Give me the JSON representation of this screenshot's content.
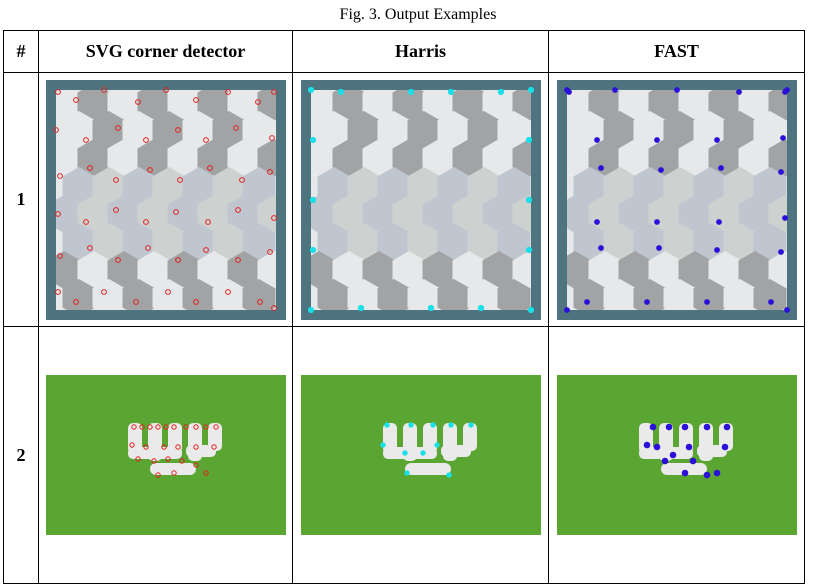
{
  "caption": "Fig. 3. Output Examples",
  "headers": {
    "index": "#",
    "col1": "SVG corner detector",
    "col2": "Harris",
    "col3": "FAST"
  },
  "rows": [
    {
      "label": "1",
      "image": "tiled-hexagon-pattern"
    },
    {
      "label": "2",
      "image": "green-flag-with-white-script"
    }
  ],
  "marker_colors": {
    "svg_corner_detector": "#e02020",
    "harris": "#18e0e8",
    "fast": "#2a10d8"
  },
  "image_colors": {
    "frame": "#4e7480",
    "tile_light": "#e6e8ea",
    "tile_blue": "#bfc6d0",
    "tile_dark": "#a2a3a5",
    "tile_green_grey": "#cdd2d0",
    "flag_green": "#5ba632",
    "glyph": "#eaeaea"
  }
}
